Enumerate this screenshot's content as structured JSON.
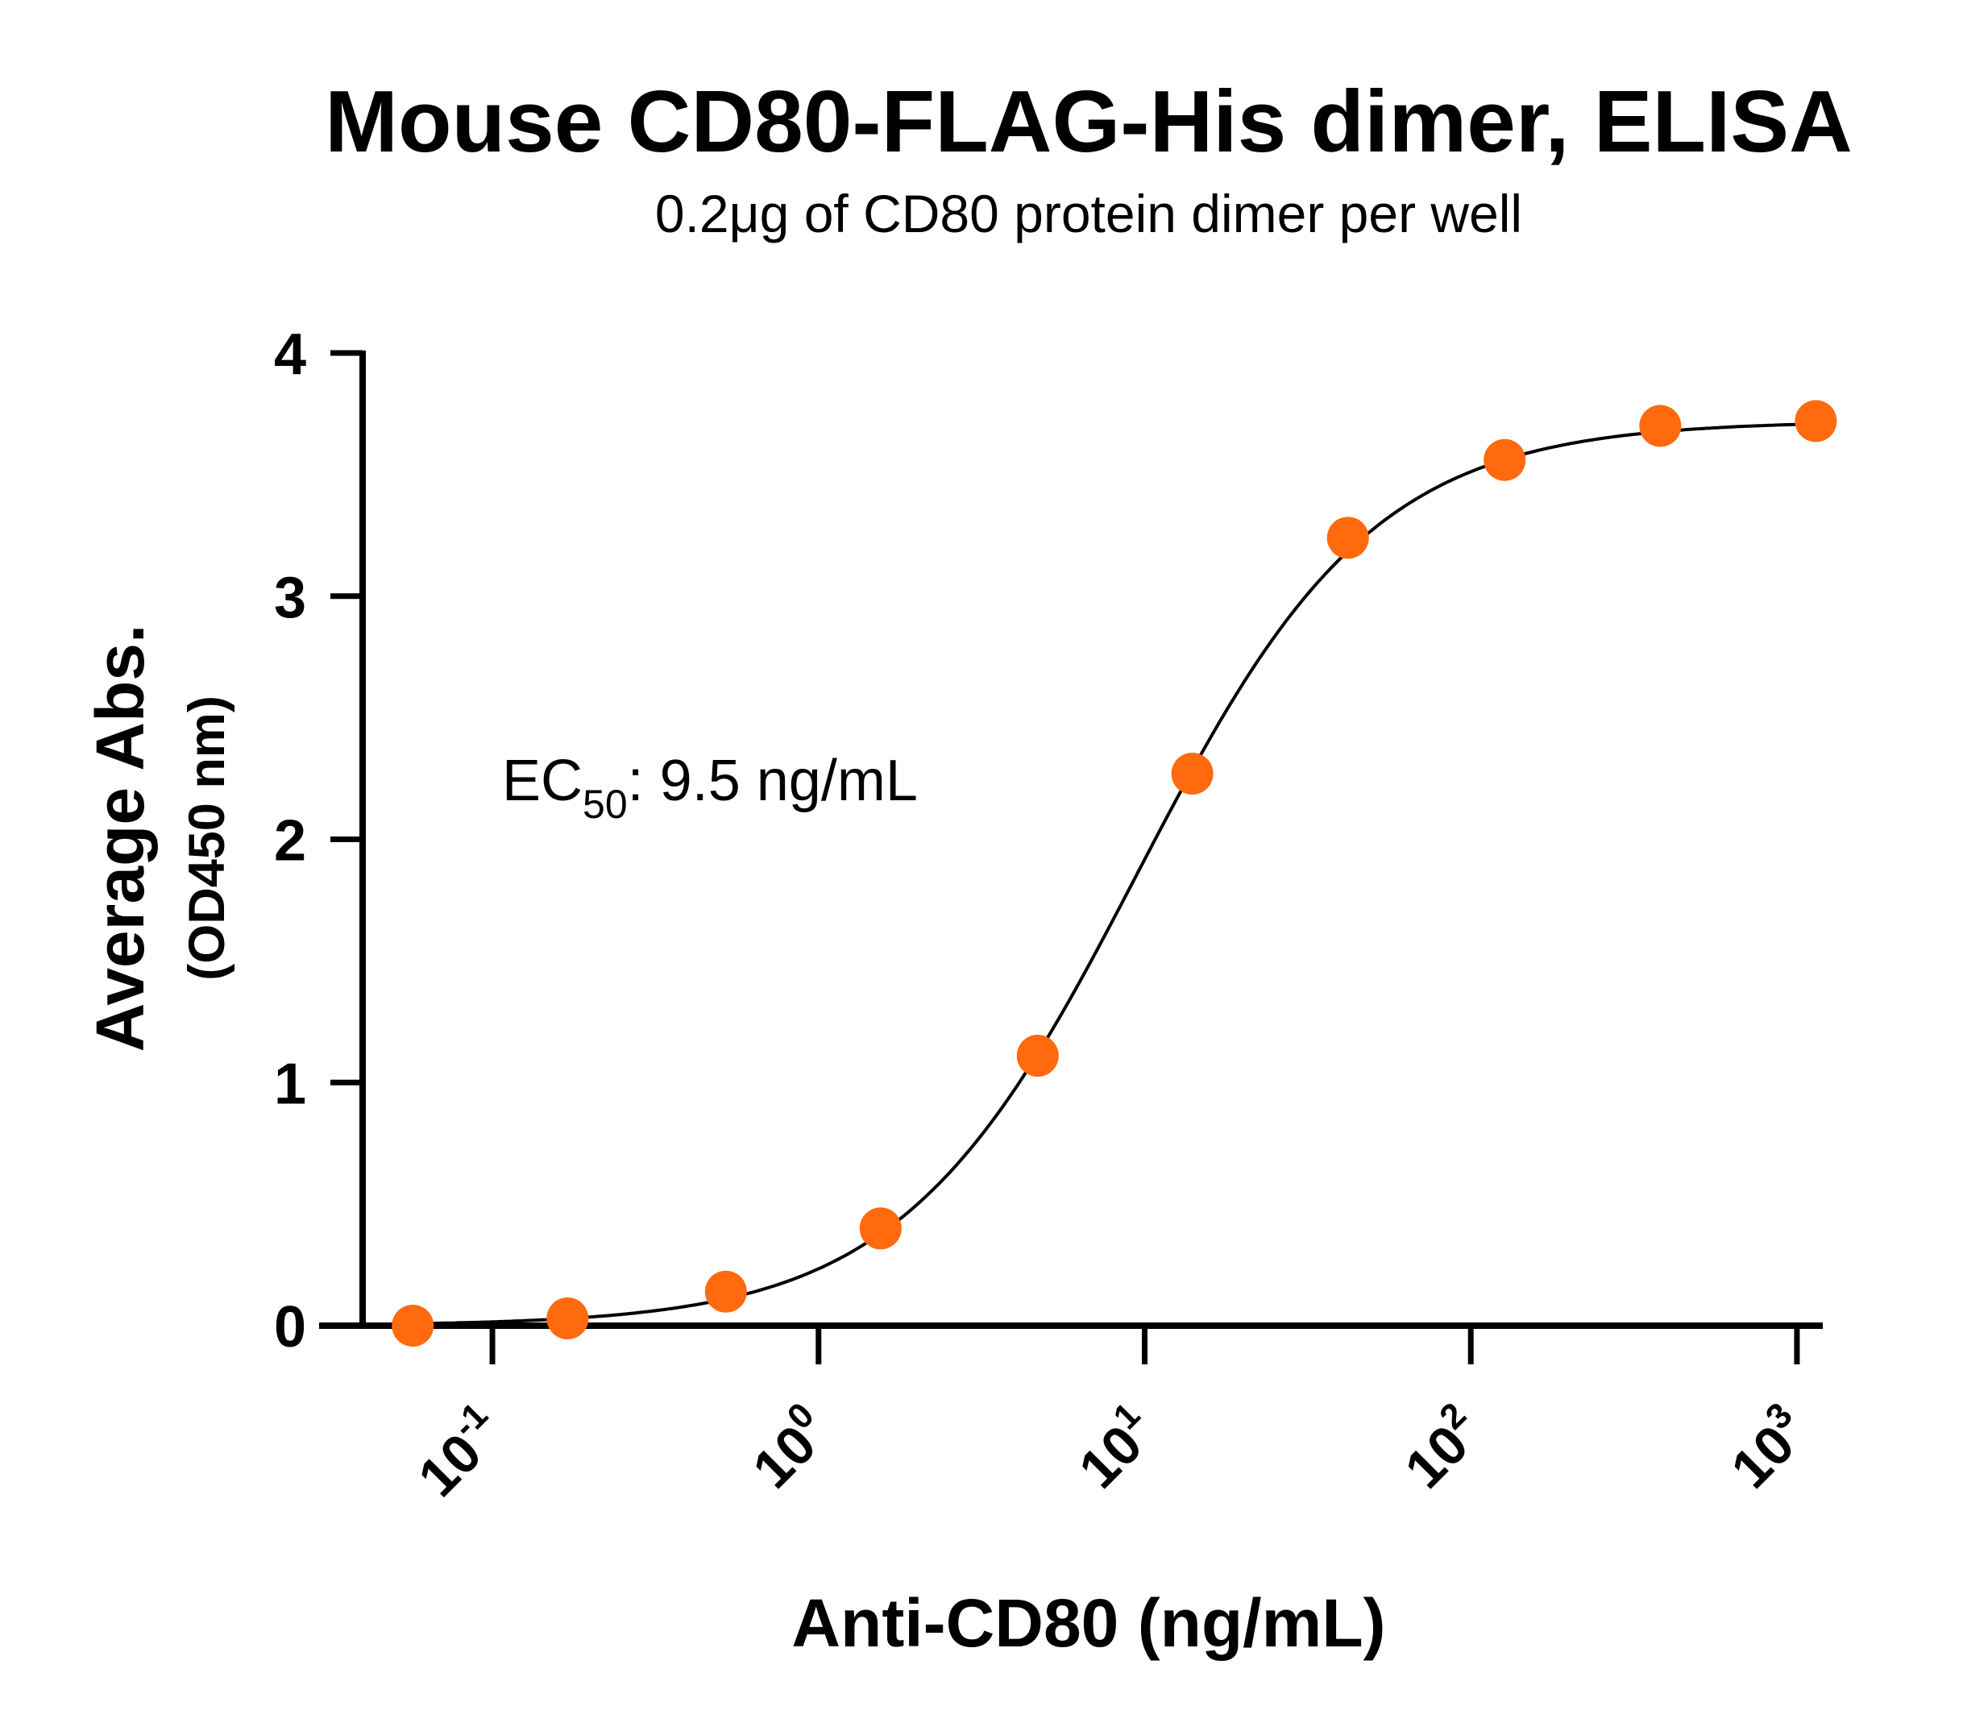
{
  "chart_data": {
    "type": "scatter",
    "title": "Mouse CD80-FLAG-His dimer, ELISA",
    "subtitle": "0.2μg of CD80 protein dimer per well",
    "xlabel": "Anti-CD80 (ng/mL)",
    "ylabel": "Average Abs.",
    "ylabel_sub": "(OD450 nm)",
    "x_scale": "log",
    "xlim": [
      0.04,
      1200
    ],
    "ylim": [
      0,
      4
    ],
    "x_ticks": [
      {
        "base": "10",
        "exp": "-1",
        "value": 0.1
      },
      {
        "base": "10",
        "exp": "0",
        "value": 1
      },
      {
        "base": "10",
        "exp": "1",
        "value": 10
      },
      {
        "base": "10",
        "exp": "2",
        "value": 100
      },
      {
        "base": "10",
        "exp": "3",
        "value": 1000
      }
    ],
    "y_ticks": [
      "0",
      "1",
      "2",
      "3",
      "4"
    ],
    "series": [
      {
        "x": [
          0.057,
          0.17,
          0.52,
          1.55,
          4.7,
          14,
          42,
          127,
          381,
          1143
        ],
        "y": [
          0.0,
          0.03,
          0.14,
          0.4,
          1.11,
          2.27,
          3.24,
          3.56,
          3.7,
          3.72
        ],
        "color": "#FF6A0E"
      }
    ],
    "fit_curve": {
      "model": "4PL",
      "bottom": 0.0,
      "top": 3.72,
      "ec50": 9.5,
      "hill": 1.2,
      "color": "#000000"
    },
    "annotation": {
      "prefix": "EC",
      "subscript": "50",
      "text": ": 9.5 ng/mL"
    },
    "grid": false,
    "legend": "none"
  }
}
